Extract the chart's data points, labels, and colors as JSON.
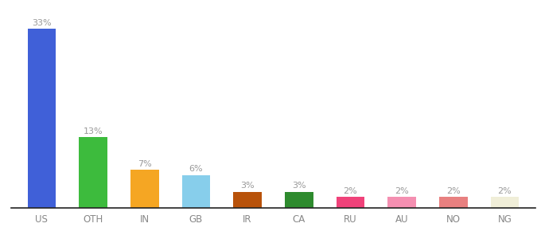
{
  "categories": [
    "US",
    "OTH",
    "IN",
    "GB",
    "IR",
    "CA",
    "RU",
    "AU",
    "NO",
    "NG"
  ],
  "values": [
    33,
    13,
    7,
    6,
    3,
    3,
    2,
    2,
    2,
    2
  ],
  "bar_colors": [
    "#4060d8",
    "#3dbb3d",
    "#f5a623",
    "#87ceeb",
    "#b8520a",
    "#2e8b2e",
    "#f0427a",
    "#f48fb1",
    "#e88080",
    "#f0eed8"
  ],
  "ylim": [
    0,
    37
  ],
  "label_color": "#999999",
  "label_fontsize": 8,
  "tick_fontsize": 8.5,
  "tick_color": "#888888",
  "background_color": "#ffffff",
  "bar_width": 0.55
}
